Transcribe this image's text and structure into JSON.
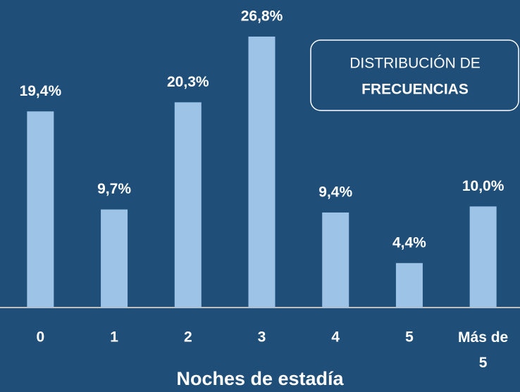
{
  "chart_data": {
    "type": "bar",
    "x_label": "Noches de estadía",
    "annotation": [
      "DISTRIBUCIÓN DE",
      "FRECUENCIAS"
    ],
    "categories": [
      "0",
      "1",
      "2",
      "3",
      "4",
      "5",
      "Más de 5"
    ],
    "values": [
      19.4,
      9.7,
      20.3,
      26.8,
      9.4,
      4.4,
      10.0
    ],
    "value_labels": [
      "19,4%",
      "9,7%",
      "20,3%",
      "26,8%",
      "9,4%",
      "4,4%",
      "10,0%"
    ],
    "color": "#9dc3e6",
    "ylim": [
      0,
      30
    ]
  }
}
